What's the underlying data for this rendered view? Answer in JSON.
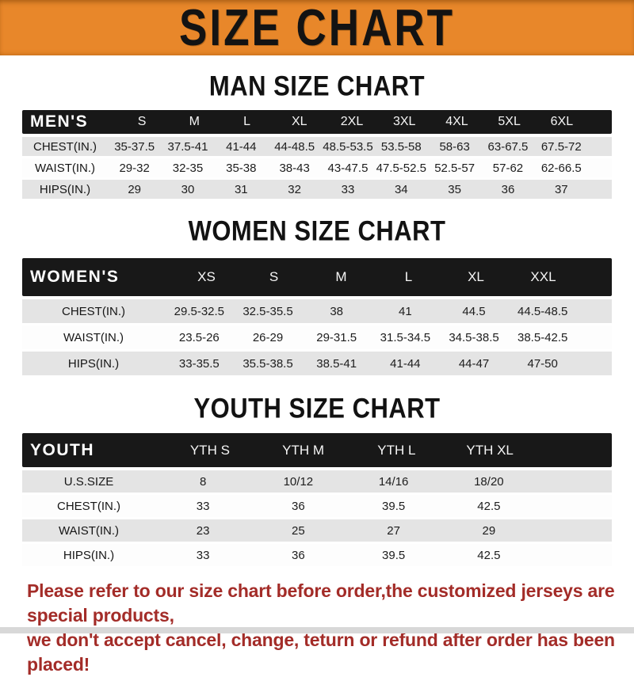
{
  "banner": {
    "title": "SIZE CHART"
  },
  "colors": {
    "banner_bg": "#E8872A",
    "table_header_bg": "#181818",
    "row_alt_bg": "#E4E4E4",
    "footer_text": "#A32C28"
  },
  "sections": [
    {
      "title": "MAN SIZE CHART",
      "header_label": "MEN'S",
      "columns": [
        "S",
        "M",
        "L",
        "XL",
        "2XL",
        "3XL",
        "4XL",
        "5XL",
        "6XL"
      ],
      "rows": [
        {
          "label": "CHEST(IN.)",
          "values": [
            "35-37.5",
            "37.5-41",
            "41-44",
            "44-48.5",
            "48.5-53.5",
            "53.5-58",
            "58-63",
            "63-67.5",
            "67.5-72"
          ]
        },
        {
          "label": "WAIST(IN.)",
          "values": [
            "29-32",
            "32-35",
            "35-38",
            "38-43",
            "43-47.5",
            "47.5-52.5",
            "52.5-57",
            "57-62",
            "62-66.5"
          ]
        },
        {
          "label": "HIPS(IN.)",
          "values": [
            "29",
            "30",
            "31",
            "32",
            "33",
            "34",
            "35",
            "36",
            "37"
          ]
        }
      ]
    },
    {
      "title": "WOMEN SIZE CHART",
      "header_label": "WOMEN'S",
      "columns": [
        "XS",
        "S",
        "M",
        "L",
        "XL",
        "XXL"
      ],
      "rows": [
        {
          "label": "CHEST(IN.)",
          "values": [
            "29.5-32.5",
            "32.5-35.5",
            "38",
            "41",
            "44.5",
            "44.5-48.5"
          ]
        },
        {
          "label": "WAIST(IN.)",
          "values": [
            "23.5-26",
            "26-29",
            "29-31.5",
            "31.5-34.5",
            "34.5-38.5",
            "38.5-42.5"
          ]
        },
        {
          "label": "HIPS(IN.)",
          "values": [
            "33-35.5",
            "35.5-38.5",
            "38.5-41",
            "41-44",
            "44-47",
            "47-50"
          ]
        }
      ]
    },
    {
      "title": "YOUTH SIZE CHART",
      "header_label": "YOUTH",
      "columns": [
        "YTH S",
        "YTH M",
        "YTH L",
        "YTH XL"
      ],
      "rows": [
        {
          "label": "U.S.SIZE",
          "values": [
            "8",
            "10/12",
            "14/16",
            "18/20"
          ]
        },
        {
          "label": "CHEST(IN.)",
          "values": [
            "33",
            "36",
            "39.5",
            "42.5"
          ]
        },
        {
          "label": "WAIST(IN.)",
          "values": [
            "23",
            "25",
            "27",
            "29"
          ]
        },
        {
          "label": "HIPS(IN.)",
          "values": [
            "33",
            "36",
            "39.5",
            "42.5"
          ]
        }
      ]
    }
  ],
  "footer": {
    "lines": [
      "Please refer to our size chart before order,the customized jerseys are special products,",
      "we don't accept cancel, change, teturn or refund after order has been placed!"
    ]
  }
}
